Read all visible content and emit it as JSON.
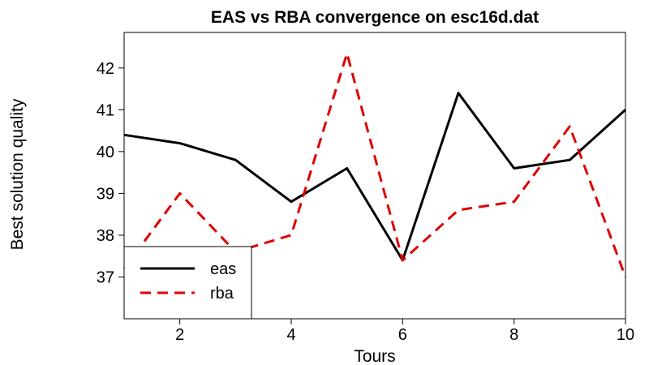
{
  "chart_data": {
    "type": "line",
    "title": "EAS vs RBA convergence on esc16d.dat",
    "xlabel": "Tours",
    "ylabel": "Best solution quality",
    "xlim": [
      1,
      10
    ],
    "ylim": [
      36,
      42.85
    ],
    "x": [
      1,
      2,
      3,
      4,
      5,
      6,
      7,
      8,
      9,
      10
    ],
    "x_ticks": [
      2,
      4,
      6,
      8,
      10
    ],
    "y_ticks": [
      37,
      38,
      39,
      40,
      41,
      42
    ],
    "grid": false,
    "legend_position": "bottom-left",
    "series": [
      {
        "name": "eas",
        "values": [
          40.4,
          40.2,
          39.8,
          38.8,
          39.6,
          37.4,
          41.4,
          39.6,
          39.8,
          41.0
        ],
        "color": "#000000",
        "dash": "solid"
      },
      {
        "name": "rba",
        "values": [
          37.2,
          39.0,
          37.6,
          38.0,
          42.35,
          37.4,
          38.6,
          38.8,
          40.6,
          37.0
        ],
        "color": "#e00000",
        "dash": "dashed"
      }
    ]
  }
}
